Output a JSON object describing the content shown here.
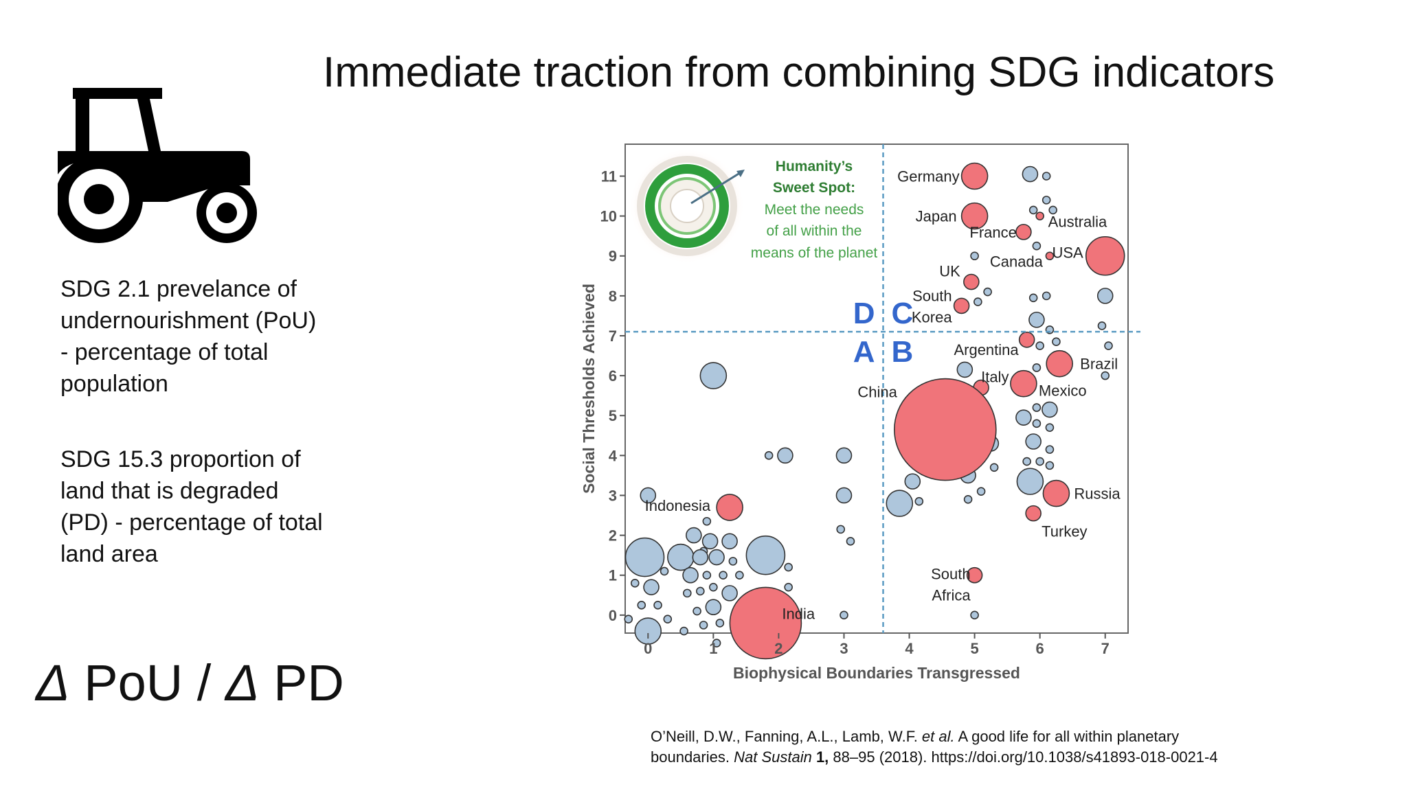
{
  "slide": {
    "title": "Immediate traction from combining SDG indicators",
    "sdg1_lines": [
      "SDG 2.1 prevelance of",
      "undernourishment (PoU)",
      "-  percentage of total",
      "population"
    ],
    "sdg2_lines": [
      "SDG 15.3 proportion of",
      "land that is degraded",
      "(PD) - percentage of total",
      "land area"
    ],
    "delta_symbol": "Δ",
    "delta_numerator": " PoU / ",
    "delta_denominator": " PD",
    "citation_line1_a": "O’Neill, D.W., Fanning, A.L., Lamb,  W.F. ",
    "citation_line1_etal": "et al.",
    "citation_line1_b": " A good life for all within planetary",
    "citation_line2_a": "boundaries. ",
    "citation_line2_journal": "Nat Sustain",
    "citation_line2_vol": " 1,",
    "citation_line2_b": " 88–95  (2018).  https://doi.org/10.1038/s41893-018-0021-4",
    "icons": [
      "tractor-icon",
      "doughnut-logo-icon"
    ]
  },
  "chart_data": {
    "type": "scatter",
    "subtype": "bubble",
    "xlabel": "Biophysical Boundaries Transgressed",
    "ylabel": "Social Thresholds Achieved",
    "xlim": [
      -0.35,
      7.35
    ],
    "ylim": [
      -0.45,
      11.8
    ],
    "xticks": [
      0,
      1,
      2,
      3,
      4,
      5,
      6,
      7
    ],
    "yticks": [
      0,
      1,
      2,
      3,
      4,
      5,
      6,
      7,
      8,
      9,
      10,
      11
    ],
    "grid": false,
    "threshold_x": 3.6,
    "threshold_y": 7.1,
    "quadrant_labels": [
      "D",
      "C",
      "A",
      "B"
    ],
    "colors": {
      "labelled": "#f0747a",
      "other": "#aec6dc",
      "outline": "#333333",
      "quadrant": "#3366cc",
      "threshold": "#5a9ac2"
    },
    "inset": {
      "title_lines": [
        "Humanity’s",
        "Sweet Spot:"
      ],
      "body_lines": [
        "Meet the needs",
        "of all within the",
        "means of the planet"
      ],
      "title_color": "#2e7d32",
      "body_color": "#43a047"
    },
    "series": [
      {
        "name": "labelled",
        "points": [
          {
            "x": 5,
            "y": 11,
            "size": "m",
            "label": "Germany"
          },
          {
            "x": 5,
            "y": 10,
            "size": "m",
            "label": "Japan"
          },
          {
            "x": 5.75,
            "y": 9.6,
            "size": "s",
            "label": "France"
          },
          {
            "x": 6,
            "y": 10,
            "size": "xs",
            "label": "Australia"
          },
          {
            "x": 6.15,
            "y": 9,
            "size": "xs",
            "label": "Canada"
          },
          {
            "x": 7,
            "y": 9,
            "size": "l",
            "label": "USA"
          },
          {
            "x": 4.95,
            "y": 8.35,
            "size": "s",
            "label": "UK"
          },
          {
            "x": 4.8,
            "y": 7.75,
            "size": "s",
            "label": "South Korea"
          },
          {
            "x": 5.8,
            "y": 6.9,
            "size": "s",
            "label": "Argentina"
          },
          {
            "x": 5.1,
            "y": 5.7,
            "size": "s",
            "label": "Italy"
          },
          {
            "x": 6.3,
            "y": 6.3,
            "size": "m",
            "label": "Brazil"
          },
          {
            "x": 5.75,
            "y": 5.8,
            "size": "m",
            "label": "Mexico"
          },
          {
            "x": 4.55,
            "y": 4.65,
            "size": "xxl",
            "label": "China"
          },
          {
            "x": 6.25,
            "y": 3.05,
            "size": "m",
            "label": "Russia"
          },
          {
            "x": 5.9,
            "y": 2.55,
            "size": "s",
            "label": "Turkey"
          },
          {
            "x": 1.25,
            "y": 2.7,
            "size": "m",
            "label": "Indonesia"
          },
          {
            "x": 5,
            "y": 1,
            "size": "s",
            "label": "South Africa"
          },
          {
            "x": 1.8,
            "y": -0.2,
            "size": "xl",
            "label": "India"
          }
        ]
      },
      {
        "name": "other",
        "points": [
          {
            "x": 5.85,
            "y": 11.05,
            "size": "s"
          },
          {
            "x": 6.1,
            "y": 11.0,
            "size": "xs"
          },
          {
            "x": 6.1,
            "y": 10.4,
            "size": "xs"
          },
          {
            "x": 5.9,
            "y": 10.15,
            "size": "xs"
          },
          {
            "x": 6.2,
            "y": 10.15,
            "size": "xs"
          },
          {
            "x": 5,
            "y": 9.0,
            "size": "xs"
          },
          {
            "x": 5.95,
            "y": 9.25,
            "size": "xs"
          },
          {
            "x": 5.2,
            "y": 8.1,
            "size": "xs"
          },
          {
            "x": 5.05,
            "y": 7.85,
            "size": "xs"
          },
          {
            "x": 5.9,
            "y": 7.95,
            "size": "xs"
          },
          {
            "x": 6.1,
            "y": 8.0,
            "size": "xs"
          },
          {
            "x": 7,
            "y": 8.0,
            "size": "s"
          },
          {
            "x": 5.95,
            "y": 7.4,
            "size": "s"
          },
          {
            "x": 6.15,
            "y": 7.15,
            "size": "xs"
          },
          {
            "x": 6.95,
            "y": 7.25,
            "size": "xs"
          },
          {
            "x": 6.0,
            "y": 6.75,
            "size": "xs"
          },
          {
            "x": 7.05,
            "y": 6.75,
            "size": "xs"
          },
          {
            "x": 6.25,
            "y": 6.85,
            "size": "xs"
          },
          {
            "x": 4.85,
            "y": 6.15,
            "size": "s"
          },
          {
            "x": 5.95,
            "y": 6.2,
            "size": "xs"
          },
          {
            "x": 7.0,
            "y": 6.0,
            "size": "xs"
          },
          {
            "x": 5.95,
            "y": 5.2,
            "size": "xs"
          },
          {
            "x": 6.15,
            "y": 5.15,
            "size": "s"
          },
          {
            "x": 5.95,
            "y": 4.8,
            "size": "xs"
          },
          {
            "x": 5.75,
            "y": 4.95,
            "size": "s"
          },
          {
            "x": 6.15,
            "y": 4.7,
            "size": "xs"
          },
          {
            "x": 5.9,
            "y": 4.35,
            "size": "s"
          },
          {
            "x": 6.15,
            "y": 4.15,
            "size": "xs"
          },
          {
            "x": 5.8,
            "y": 3.85,
            "size": "xs"
          },
          {
            "x": 6.0,
            "y": 3.85,
            "size": "xs"
          },
          {
            "x": 6.15,
            "y": 3.75,
            "size": "xs"
          },
          {
            "x": 5.25,
            "y": 4.3,
            "size": "s"
          },
          {
            "x": 5.05,
            "y": 3.9,
            "size": "xs"
          },
          {
            "x": 5.3,
            "y": 3.7,
            "size": "xs"
          },
          {
            "x": 4.9,
            "y": 3.5,
            "size": "s"
          },
          {
            "x": 5.1,
            "y": 3.1,
            "size": "xs"
          },
          {
            "x": 4.9,
            "y": 2.9,
            "size": "xs"
          },
          {
            "x": 5.85,
            "y": 3.35,
            "size": "m"
          },
          {
            "x": 4.0,
            "y": 4.0,
            "size": "xs"
          },
          {
            "x": 4.05,
            "y": 3.35,
            "size": "s"
          },
          {
            "x": 4.15,
            "y": 2.85,
            "size": "xs"
          },
          {
            "x": 3.85,
            "y": 2.8,
            "size": "m"
          },
          {
            "x": 5.0,
            "y": 0.0,
            "size": "xs"
          },
          {
            "x": 1,
            "y": 6.0,
            "size": "m"
          },
          {
            "x": 1.85,
            "y": 4.0,
            "size": "xs"
          },
          {
            "x": 2.1,
            "y": 4.0,
            "size": "s"
          },
          {
            "x": 3,
            "y": 4.0,
            "size": "s"
          },
          {
            "x": 3,
            "y": 3.0,
            "size": "s"
          },
          {
            "x": 2.95,
            "y": 2.15,
            "size": "xs"
          },
          {
            "x": 3.1,
            "y": 1.85,
            "size": "xs"
          },
          {
            "x": 3,
            "y": 0.0,
            "size": "xs"
          },
          {
            "x": 0,
            "y": 3.0,
            "size": "s"
          },
          {
            "x": 0.9,
            "y": 2.35,
            "size": "xs"
          },
          {
            "x": 0.7,
            "y": 2.0,
            "size": "s"
          },
          {
            "x": 0.95,
            "y": 1.85,
            "size": "s"
          },
          {
            "x": 1.25,
            "y": 1.85,
            "size": "s"
          },
          {
            "x": 0.85,
            "y": 1.6,
            "size": "xs"
          },
          {
            "x": -0.05,
            "y": 1.45,
            "size": "l"
          },
          {
            "x": 0.5,
            "y": 1.45,
            "size": "m"
          },
          {
            "x": 0.8,
            "y": 1.45,
            "size": "s"
          },
          {
            "x": 1.05,
            "y": 1.45,
            "size": "s"
          },
          {
            "x": 1.3,
            "y": 1.35,
            "size": "xs"
          },
          {
            "x": 1.8,
            "y": 1.5,
            "size": "l"
          },
          {
            "x": 0.25,
            "y": 1.1,
            "size": "xs"
          },
          {
            "x": 0.65,
            "y": 1.0,
            "size": "s"
          },
          {
            "x": 0.9,
            "y": 1.0,
            "size": "xs"
          },
          {
            "x": 1.15,
            "y": 1.0,
            "size": "xs"
          },
          {
            "x": 1.4,
            "y": 1.0,
            "size": "xs"
          },
          {
            "x": 2.15,
            "y": 1.2,
            "size": "xs"
          },
          {
            "x": -0.2,
            "y": 0.8,
            "size": "xs"
          },
          {
            "x": 0.05,
            "y": 0.7,
            "size": "s"
          },
          {
            "x": 0.6,
            "y": 0.55,
            "size": "xs"
          },
          {
            "x": 0.8,
            "y": 0.6,
            "size": "xs"
          },
          {
            "x": 1.0,
            "y": 0.7,
            "size": "xs"
          },
          {
            "x": 1.25,
            "y": 0.55,
            "size": "s"
          },
          {
            "x": 2.15,
            "y": 0.7,
            "size": "xs"
          },
          {
            "x": -0.1,
            "y": 0.25,
            "size": "xs"
          },
          {
            "x": 0.15,
            "y": 0.25,
            "size": "xs"
          },
          {
            "x": 0.75,
            "y": 0.1,
            "size": "xs"
          },
          {
            "x": 1.0,
            "y": 0.2,
            "size": "s"
          },
          {
            "x": 0.3,
            "y": -0.1,
            "size": "xs"
          },
          {
            "x": -0.3,
            "y": -0.1,
            "size": "xs"
          },
          {
            "x": 0.0,
            "y": -0.4,
            "size": "m"
          },
          {
            "x": 0.85,
            "y": -0.25,
            "size": "xs"
          },
          {
            "x": 1.1,
            "y": -0.2,
            "size": "xs"
          },
          {
            "x": 0.55,
            "y": -0.4,
            "size": "xs"
          },
          {
            "x": 1.05,
            "y": -0.7,
            "size": "xs"
          }
        ]
      }
    ]
  }
}
